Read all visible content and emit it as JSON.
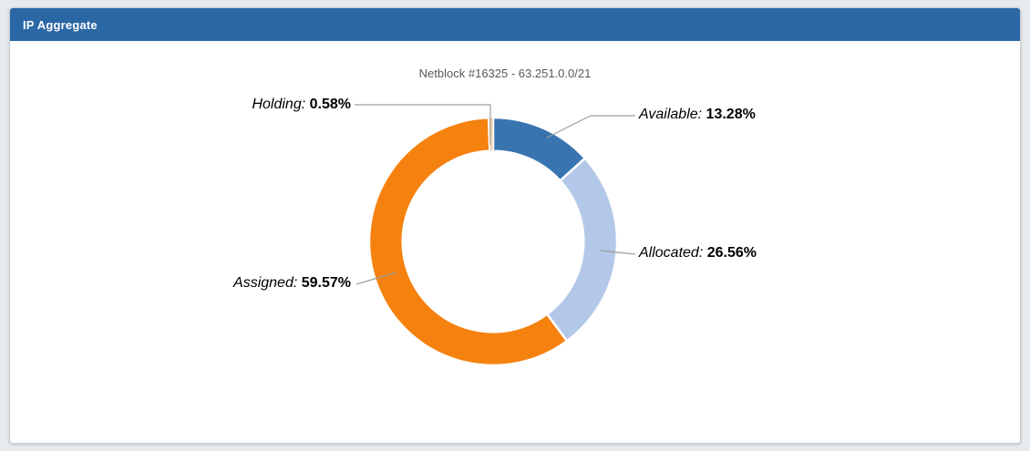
{
  "panel": {
    "title": "IP Aggregate"
  },
  "chart_data": {
    "type": "pie",
    "subtype": "donut",
    "title": "Netblock #16325 - 63.251.0.0/21",
    "unit": "%",
    "legend": "none",
    "labels_position": "outside-with-leader-lines",
    "start_angle_deg": 0,
    "direction": "clockwise",
    "hole_ratio": 0.73,
    "slices": [
      {
        "name": "Available",
        "label": "Available:",
        "value": 13.28,
        "value_text": "13.28%",
        "color": "#3874b0"
      },
      {
        "name": "Allocated",
        "label": "Allocated:",
        "value": 26.56,
        "value_text": "26.56%",
        "color": "#b3c8e9"
      },
      {
        "name": "Assigned",
        "label": "Assigned:",
        "value": 59.57,
        "value_text": "59.57%",
        "color": "#f5820f"
      },
      {
        "name": "Holding",
        "label": "Holding:",
        "value": 0.58,
        "value_text": "0.58%",
        "color": "#f3d5ad"
      }
    ]
  },
  "colors": {
    "header_bg": "#2b67a5",
    "header_text": "#ffffff",
    "page_bg": "#e8ebee",
    "panel_bg": "#ffffff",
    "panel_border": "#c9ced3",
    "title_text": "#595959",
    "label_text": "#000000",
    "leader_line": "#9e9e9e"
  }
}
